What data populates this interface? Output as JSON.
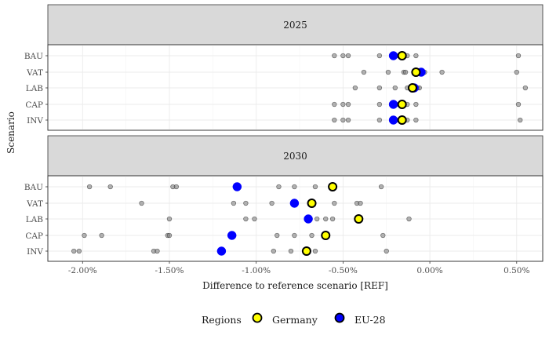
{
  "chart_data": {
    "type": "scatter",
    "xlabel": "Difference to reference scenario [REF]",
    "ylabel": "Scenario",
    "xlim": [
      -0.022,
      0.0065
    ],
    "x_ticks": [
      -0.02,
      -0.015,
      -0.01,
      -0.005,
      0.0,
      0.005
    ],
    "x_tick_labels": [
      "-2.00%",
      "-1.50%",
      "-1.00%",
      "-0.50%",
      "0.00%",
      "0.50%"
    ],
    "categories": [
      "BAU",
      "VAT",
      "LAB",
      "CAP",
      "INV"
    ],
    "legend": {
      "title": "Regions",
      "entries": [
        {
          "label": "Germany",
          "color": "#ffff00"
        },
        {
          "label": "EU-28",
          "color": "#0000ff"
        }
      ],
      "position": "bottom"
    },
    "colors": {
      "germany": "#ffff00",
      "eu28": "#0000ff",
      "other": "#808080",
      "outline": "#000000"
    },
    "panels": [
      {
        "title": "2025",
        "series": [
          {
            "name": "Germany",
            "values": {
              "BAU": -0.0016,
              "VAT": -0.0008,
              "LAB": -0.001,
              "CAP": -0.0016,
              "INV": -0.0016
            }
          },
          {
            "name": "EU-28",
            "values": {
              "BAU": -0.0021,
              "VAT": -0.0005,
              "LAB": -0.0009,
              "CAP": -0.0021,
              "INV": -0.0021
            }
          }
        ],
        "others": {
          "BAU": [
            -0.0055,
            -0.005,
            -0.0047,
            -0.0029,
            -0.0018,
            -0.0013,
            -0.0008,
            0.0051
          ],
          "VAT": [
            -0.0038,
            -0.0024,
            -0.0015,
            -0.0014,
            -0.0009,
            -0.0003,
            0.0007,
            0.005
          ],
          "LAB": [
            -0.0043,
            -0.0029,
            -0.002,
            -0.0013,
            -0.0007,
            -0.0006,
            0.0055
          ],
          "CAP": [
            -0.0055,
            -0.005,
            -0.0047,
            -0.0029,
            -0.0018,
            -0.0013,
            -0.0008,
            0.0051
          ],
          "INV": [
            -0.0055,
            -0.005,
            -0.0047,
            -0.0029,
            -0.0018,
            -0.0013,
            -0.0008,
            0.0052
          ]
        }
      },
      {
        "title": "2030",
        "series": [
          {
            "name": "Germany",
            "values": {
              "BAU": -0.0056,
              "VAT": -0.0068,
              "LAB": -0.0041,
              "CAP": -0.006,
              "INV": -0.0071
            }
          },
          {
            "name": "EU-28",
            "values": {
              "BAU": -0.0111,
              "VAT": -0.0078,
              "LAB": -0.007,
              "CAP": -0.0114,
              "INV": -0.012
            }
          }
        ],
        "others": {
          "BAU": [
            -0.0196,
            -0.0184,
            -0.0148,
            -0.0146,
            -0.0087,
            -0.0078,
            -0.0066,
            -0.0028
          ],
          "VAT": [
            -0.0166,
            -0.0113,
            -0.0106,
            -0.0091,
            -0.0055,
            -0.0042,
            -0.004
          ],
          "LAB": [
            -0.015,
            -0.0106,
            -0.0101,
            -0.0065,
            -0.006,
            -0.0056,
            -0.0012
          ],
          "CAP": [
            -0.0199,
            -0.0189,
            -0.0151,
            -0.015,
            -0.0088,
            -0.0078,
            -0.0068,
            -0.0027
          ],
          "INV": [
            -0.0205,
            -0.0202,
            -0.0159,
            -0.0157,
            -0.009,
            -0.008,
            -0.0066,
            -0.0025
          ]
        }
      }
    ]
  }
}
